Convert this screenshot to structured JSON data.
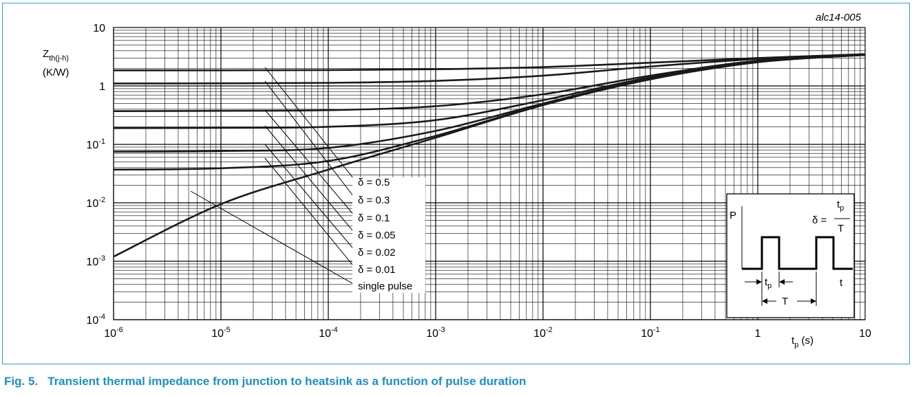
{
  "chart_data": {
    "type": "line",
    "code": "alc14-005",
    "caption_number": "Fig. 5.",
    "caption_text": "Transient thermal impedance from junction to heatsink as a function of pulse duration",
    "x_scale": "log",
    "y_scale": "log",
    "xlim": [
      1e-06,
      10
    ],
    "ylim": [
      0.0001,
      10
    ],
    "x_ticks": [
      {
        "v": 1e-06,
        "base": "10",
        "exp": "-6"
      },
      {
        "v": 1e-05,
        "base": "10",
        "exp": "-5"
      },
      {
        "v": 0.0001,
        "base": "10",
        "exp": "-4"
      },
      {
        "v": 0.001,
        "base": "10",
        "exp": "-3"
      },
      {
        "v": 0.01,
        "base": "10",
        "exp": "-2"
      },
      {
        "v": 0.1,
        "base": "10",
        "exp": "-1"
      },
      {
        "v": 1,
        "base": "1",
        "exp": ""
      },
      {
        "v": 10,
        "base": "10",
        "exp": ""
      }
    ],
    "y_ticks": [
      {
        "v": 10,
        "base": "10",
        "exp": ""
      },
      {
        "v": 1,
        "base": "1",
        "exp": ""
      },
      {
        "v": 0.1,
        "base": "10",
        "exp": "-1"
      },
      {
        "v": 0.01,
        "base": "10",
        "exp": "-2"
      },
      {
        "v": 0.001,
        "base": "10",
        "exp": "-3"
      },
      {
        "v": 0.0001,
        "base": "10",
        "exp": "-4"
      }
    ],
    "xlabel": {
      "main": "t",
      "sub": "p",
      "unit": " (s)"
    },
    "ylabel": {
      "main": "Z",
      "sub": "th(j-h)",
      "unit": "(K/W)"
    },
    "grid": true,
    "series": [
      {
        "name": "δ = 0.5",
        "x": [
          1e-06,
          1e-05,
          0.0001,
          0.001,
          0.01,
          0.1,
          1,
          10
        ],
        "y": [
          1.85,
          1.85,
          1.87,
          1.93,
          2.1,
          2.5,
          3.0,
          3.5
        ]
      },
      {
        "name": "δ = 0.3",
        "x": [
          1e-06,
          1e-05,
          0.0001,
          0.001,
          0.01,
          0.1,
          1,
          10
        ],
        "y": [
          1.1,
          1.11,
          1.13,
          1.22,
          1.5,
          2.15,
          2.9,
          3.5
        ]
      },
      {
        "name": "δ = 0.1",
        "x": [
          1e-06,
          1e-05,
          0.0001,
          0.001,
          0.01,
          0.1,
          1,
          10
        ],
        "y": [
          0.37,
          0.375,
          0.385,
          0.45,
          0.72,
          1.5,
          2.7,
          3.45
        ]
      },
      {
        "name": "δ = 0.05",
        "x": [
          1e-06,
          1e-05,
          0.0001,
          0.001,
          0.01,
          0.1,
          1,
          10
        ],
        "y": [
          0.19,
          0.192,
          0.2,
          0.26,
          0.57,
          1.4,
          2.6,
          3.4
        ]
      },
      {
        "name": "δ = 0.02",
        "x": [
          1e-06,
          1e-05,
          0.0001,
          0.001,
          0.01,
          0.1,
          1,
          10
        ],
        "y": [
          0.075,
          0.077,
          0.087,
          0.17,
          0.5,
          1.35,
          2.6,
          3.4
        ]
      },
      {
        "name": "δ = 0.01",
        "x": [
          1e-06,
          1e-05,
          0.0001,
          0.001,
          0.01,
          0.1,
          1,
          10
        ],
        "y": [
          0.037,
          0.039,
          0.052,
          0.14,
          0.48,
          1.3,
          2.55,
          3.4
        ]
      },
      {
        "name": "single pulse",
        "x": [
          1e-06,
          1e-05,
          0.0001,
          0.001,
          0.01,
          0.1,
          1,
          10
        ],
        "y": [
          0.0012,
          0.0095,
          0.037,
          0.13,
          0.47,
          1.3,
          2.55,
          3.4
        ]
      }
    ],
    "legend": [
      "δ = 0.5",
      "δ = 0.3",
      "δ = 0.1",
      "δ = 0.05",
      "δ = 0.02",
      "δ = 0.01",
      "single pulse"
    ],
    "inset": {
      "p": "P",
      "t": "t",
      "delta": "δ =",
      "num_main": "t",
      "num_sub": "p",
      "den": "T",
      "tp_main": "t",
      "tp_sub": "p",
      "period": "T"
    }
  }
}
